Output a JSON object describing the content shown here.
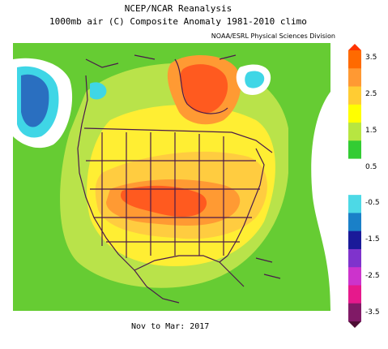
{
  "title_line1": "NCEP/NCAR Reanalysis",
  "title_line2": "1000mb air (C) Composite Anomaly 1981-2010 climo",
  "credit": "NOAA/ESRL Physical Sciences Division",
  "period": "Nov to Mar: 2017",
  "colorbar": {
    "labels": [
      "3.5",
      "2.5",
      "1.5",
      "0.5",
      "-0.5",
      "-1.5",
      "-2.5",
      "-3.5"
    ],
    "colors": [
      "#ff6a00",
      "#ff9933",
      "#ffcc33",
      "#ffff00",
      "#b7e641",
      "#33cc33",
      "#ffffff",
      "#ffffff",
      "#4dd9e6",
      "#1a80c8",
      "#1a1a99",
      "#7f33cc",
      "#cc33cc",
      "#e6198c",
      "#801a66"
    ]
  },
  "palette": {
    "green": "#66cc33",
    "yellow_green": "#b9e34a",
    "yellow": "#ffee33",
    "light_orange": "#ffcc40",
    "orange": "#ff9a33",
    "red_orange": "#ff5a1f",
    "cyan": "#3fd6e6",
    "blue": "#2a6fc0",
    "white": "#ffffff",
    "boundary": "#4a1a4a"
  }
}
